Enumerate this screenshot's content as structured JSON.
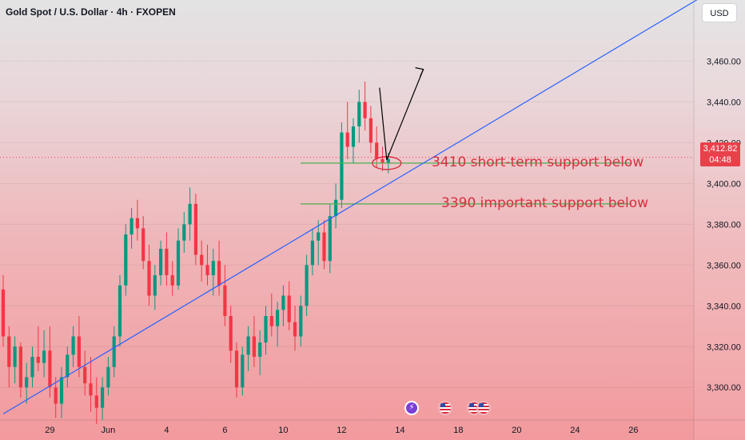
{
  "header": {
    "symbol": "Gold Spot / U.S. Dollar",
    "interval": "4h",
    "source": "FXOPEN",
    "currency_button": "USD"
  },
  "price_tag": {
    "price": "3,412.82",
    "countdown": "04:48"
  },
  "colors": {
    "up": "#089981",
    "down": "#f23645",
    "trendline": "#2962ff",
    "support": "#4caf50",
    "annotation": "#d6303f"
  },
  "events": [
    {
      "type": "dividend",
      "icon": "lightning-icon",
      "label": "⚡"
    },
    {
      "type": "us-economic",
      "icon": "us-flag-icon"
    },
    {
      "type": "us-economic",
      "icon": "us-flag-icon"
    },
    {
      "type": "us-economic",
      "icon": "us-flag-icon"
    }
  ],
  "chart_data": {
    "type": "candlestick",
    "symbol": "XAUUSD",
    "timeframe": "4h",
    "y_axis": {
      "range": [
        3284,
        3490
      ],
      "ticks": [
        "3,460.00",
        "3,440.00",
        "3,420.00",
        "3,400.00",
        "3,380.00",
        "3,360.00",
        "3,340.00",
        "3,320.00",
        "3,300.00"
      ],
      "tick_values": [
        3460,
        3440,
        3420,
        3400,
        3380,
        3360,
        3340,
        3320,
        3300
      ]
    },
    "x_axis": {
      "ticks": [
        {
          "label": "29",
          "index": 8
        },
        {
          "label": "Jun",
          "index": 18
        },
        {
          "label": "4",
          "index": 28
        },
        {
          "label": "6",
          "index": 38
        },
        {
          "label": "10",
          "index": 48
        },
        {
          "label": "12",
          "index": 58
        },
        {
          "label": "14",
          "index": 68
        },
        {
          "label": "18",
          "index": 78
        },
        {
          "label": "20",
          "index": 88
        },
        {
          "label": "24",
          "index": 98
        },
        {
          "label": "26",
          "index": 108
        }
      ],
      "total_slots": 120
    },
    "candles": [
      [
        3348,
        3355,
        3320,
        3325
      ],
      [
        3325,
        3330,
        3300,
        3310
      ],
      [
        3310,
        3325,
        3302,
        3320
      ],
      [
        3320,
        3322,
        3295,
        3300
      ],
      [
        3300,
        3312,
        3292,
        3305
      ],
      [
        3305,
        3320,
        3300,
        3315
      ],
      [
        3315,
        3330,
        3308,
        3312
      ],
      [
        3312,
        3328,
        3305,
        3318
      ],
      [
        3318,
        3330,
        3295,
        3300
      ],
      [
        3300,
        3305,
        3285,
        3292
      ],
      [
        3292,
        3310,
        3285,
        3305
      ],
      [
        3305,
        3320,
        3300,
        3316
      ],
      [
        3316,
        3330,
        3310,
        3325
      ],
      [
        3325,
        3335,
        3305,
        3310
      ],
      [
        3310,
        3318,
        3296,
        3302
      ],
      [
        3302,
        3315,
        3288,
        3296
      ],
      [
        3296,
        3305,
        3282,
        3290
      ],
      [
        3290,
        3305,
        3284,
        3300
      ],
      [
        3300,
        3315,
        3296,
        3310
      ],
      [
        3310,
        3330,
        3305,
        3325
      ],
      [
        3325,
        3355,
        3320,
        3350
      ],
      [
        3350,
        3380,
        3345,
        3375
      ],
      [
        3375,
        3388,
        3368,
        3383
      ],
      [
        3383,
        3392,
        3372,
        3378
      ],
      [
        3378,
        3384,
        3358,
        3362
      ],
      [
        3362,
        3370,
        3340,
        3345
      ],
      [
        3345,
        3360,
        3338,
        3355
      ],
      [
        3355,
        3372,
        3350,
        3368
      ],
      [
        3368,
        3376,
        3350,
        3355
      ],
      [
        3355,
        3362,
        3345,
        3350
      ],
      [
        3350,
        3378,
        3348,
        3372
      ],
      [
        3372,
        3386,
        3366,
        3380
      ],
      [
        3380,
        3398,
        3372,
        3390
      ],
      [
        3390,
        3395,
        3360,
        3365
      ],
      [
        3365,
        3372,
        3352,
        3360
      ],
      [
        3360,
        3370,
        3350,
        3355
      ],
      [
        3355,
        3368,
        3345,
        3362
      ],
      [
        3362,
        3372,
        3345,
        3350
      ],
      [
        3350,
        3360,
        3330,
        3335
      ],
      [
        3335,
        3340,
        3312,
        3318
      ],
      [
        3318,
        3322,
        3295,
        3300
      ],
      [
        3300,
        3320,
        3296,
        3316
      ],
      [
        3316,
        3330,
        3308,
        3325
      ],
      [
        3325,
        3335,
        3310,
        3315
      ],
      [
        3315,
        3328,
        3306,
        3322
      ],
      [
        3322,
        3340,
        3316,
        3335
      ],
      [
        3335,
        3346,
        3325,
        3330
      ],
      [
        3330,
        3342,
        3320,
        3338
      ],
      [
        3338,
        3350,
        3330,
        3345
      ],
      [
        3345,
        3352,
        3328,
        3332
      ],
      [
        3332,
        3340,
        3318,
        3325
      ],
      [
        3325,
        3345,
        3320,
        3340
      ],
      [
        3340,
        3365,
        3335,
        3360
      ],
      [
        3360,
        3378,
        3355,
        3372
      ],
      [
        3372,
        3382,
        3360,
        3376
      ],
      [
        3376,
        3382,
        3358,
        3362
      ],
      [
        3362,
        3390,
        3356,
        3384
      ],
      [
        3384,
        3400,
        3378,
        3392
      ],
      [
        3392,
        3430,
        3388,
        3425
      ],
      [
        3425,
        3440,
        3412,
        3418
      ],
      [
        3418,
        3432,
        3410,
        3428
      ],
      [
        3428,
        3446,
        3420,
        3440
      ],
      [
        3440,
        3450,
        3426,
        3432
      ],
      [
        3432,
        3438,
        3415,
        3420
      ],
      [
        3420,
        3428,
        3408,
        3412
      ],
      [
        3412,
        3418,
        3406,
        3410
      ],
      [
        3410,
        3415,
        3405,
        3412
      ]
    ],
    "trendline": {
      "from": {
        "index": 0,
        "price": 3287
      },
      "to": {
        "index": 120,
        "price": 3492
      }
    },
    "support_levels": [
      {
        "price": 3410,
        "label": "3410 short-term support below"
      },
      {
        "price": 3390,
        "label": "3390 important support below"
      }
    ],
    "current_price": 3412.82
  }
}
